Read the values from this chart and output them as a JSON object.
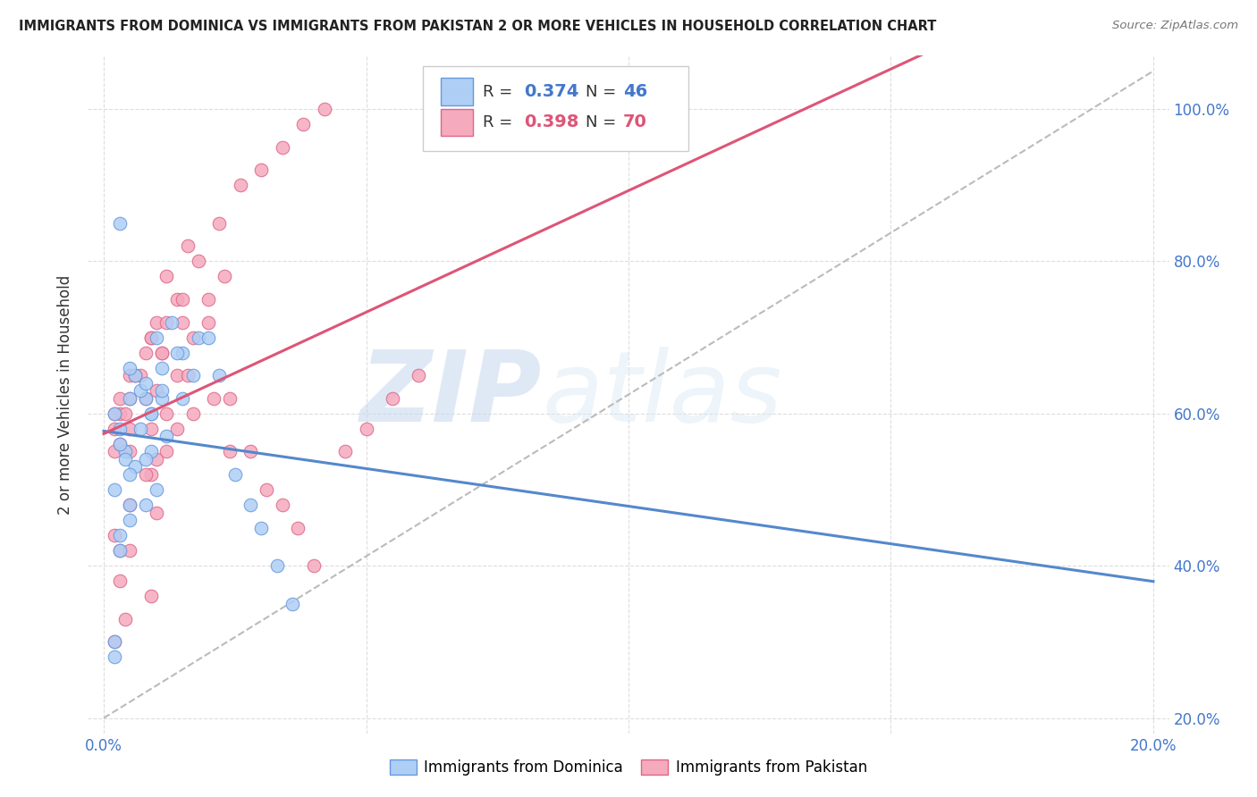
{
  "title": "IMMIGRANTS FROM DOMINICA VS IMMIGRANTS FROM PAKISTAN 2 OR MORE VEHICLES IN HOUSEHOLD CORRELATION CHART",
  "source": "Source: ZipAtlas.com",
  "ylabel": "2 or more Vehicles in Household",
  "watermark": "ZIPatlas",
  "legend_dominica_R": "0.374",
  "legend_dominica_N": "46",
  "legend_pakistan_R": "0.398",
  "legend_pakistan_N": "70",
  "dominica_color": "#aecef5",
  "pakistan_color": "#f5aabe",
  "dominica_edge_color": "#6699dd",
  "pakistan_edge_color": "#dd6688",
  "dominica_line_color": "#5588cc",
  "pakistan_line_color": "#dd5577",
  "dashed_line_color": "#bbbbbb",
  "background_color": "#ffffff",
  "grid_color": "#dddddd",
  "dominica_x": [
    0.2,
    0.5,
    0.8,
    0.3,
    0.6,
    1.0,
    1.5,
    0.9,
    0.4,
    0.2,
    0.3,
    0.7,
    1.1,
    1.3,
    0.2,
    0.5,
    0.8,
    0.3,
    0.4,
    0.7,
    0.9,
    1.1,
    1.4,
    1.8,
    2.2,
    2.5,
    2.8,
    3.0,
    3.3,
    3.6,
    0.6,
    0.9,
    1.2,
    1.5,
    1.7,
    2.0,
    0.3,
    0.5,
    0.8,
    1.0,
    0.2,
    0.5,
    0.8,
    1.1,
    0.3,
    0.5
  ],
  "dominica_y": [
    30,
    48,
    62,
    58,
    65,
    70,
    68,
    60,
    55,
    50,
    42,
    63,
    66,
    72,
    60,
    62,
    64,
    56,
    54,
    58,
    60,
    62,
    68,
    70,
    65,
    52,
    48,
    45,
    40,
    35,
    53,
    55,
    57,
    62,
    65,
    70,
    44,
    46,
    48,
    50,
    28,
    52,
    54,
    63,
    85,
    66
  ],
  "pakistan_x": [
    0.3,
    0.6,
    1.0,
    0.2,
    0.5,
    1.2,
    1.6,
    0.8,
    0.4,
    0.2,
    0.3,
    0.7,
    1.1,
    1.4,
    0.2,
    0.5,
    0.9,
    0.3,
    0.5,
    0.8,
    1.0,
    1.4,
    1.7,
    2.0,
    2.4,
    2.8,
    3.1,
    3.4,
    3.7,
    4.0,
    0.5,
    0.9,
    1.2,
    1.6,
    2.0,
    2.3,
    0.2,
    0.5,
    0.9,
    1.2,
    0.3,
    0.5,
    0.9,
    1.1,
    0.3,
    0.6,
    0.9,
    1.2,
    1.5,
    1.8,
    2.2,
    2.6,
    3.0,
    3.4,
    3.8,
    4.2,
    4.6,
    5.0,
    5.5,
    6.0,
    0.2,
    0.4,
    0.8,
    1.0,
    1.4,
    1.7,
    2.1,
    2.4,
    1.0,
    1.5
  ],
  "pakistan_y": [
    60,
    65,
    72,
    58,
    62,
    78,
    82,
    68,
    60,
    55,
    42,
    65,
    68,
    75,
    60,
    65,
    70,
    56,
    58,
    62,
    63,
    65,
    70,
    75,
    62,
    55,
    50,
    48,
    45,
    40,
    55,
    58,
    60,
    65,
    72,
    78,
    44,
    48,
    52,
    55,
    38,
    42,
    36,
    68,
    62,
    65,
    70,
    72,
    75,
    80,
    85,
    90,
    92,
    95,
    98,
    100,
    55,
    58,
    62,
    65,
    30,
    33,
    52,
    54,
    58,
    60,
    62,
    55,
    47,
    72
  ],
  "xlim_min": 0.0,
  "xlim_max": 20.0,
  "ylim_min": 20.0,
  "ylim_max": 105.0,
  "x_ticks": [
    0.0,
    5.0,
    10.0,
    15.0,
    20.0
  ],
  "y_ticks": [
    20.0,
    40.0,
    60.0,
    80.0,
    100.0
  ]
}
